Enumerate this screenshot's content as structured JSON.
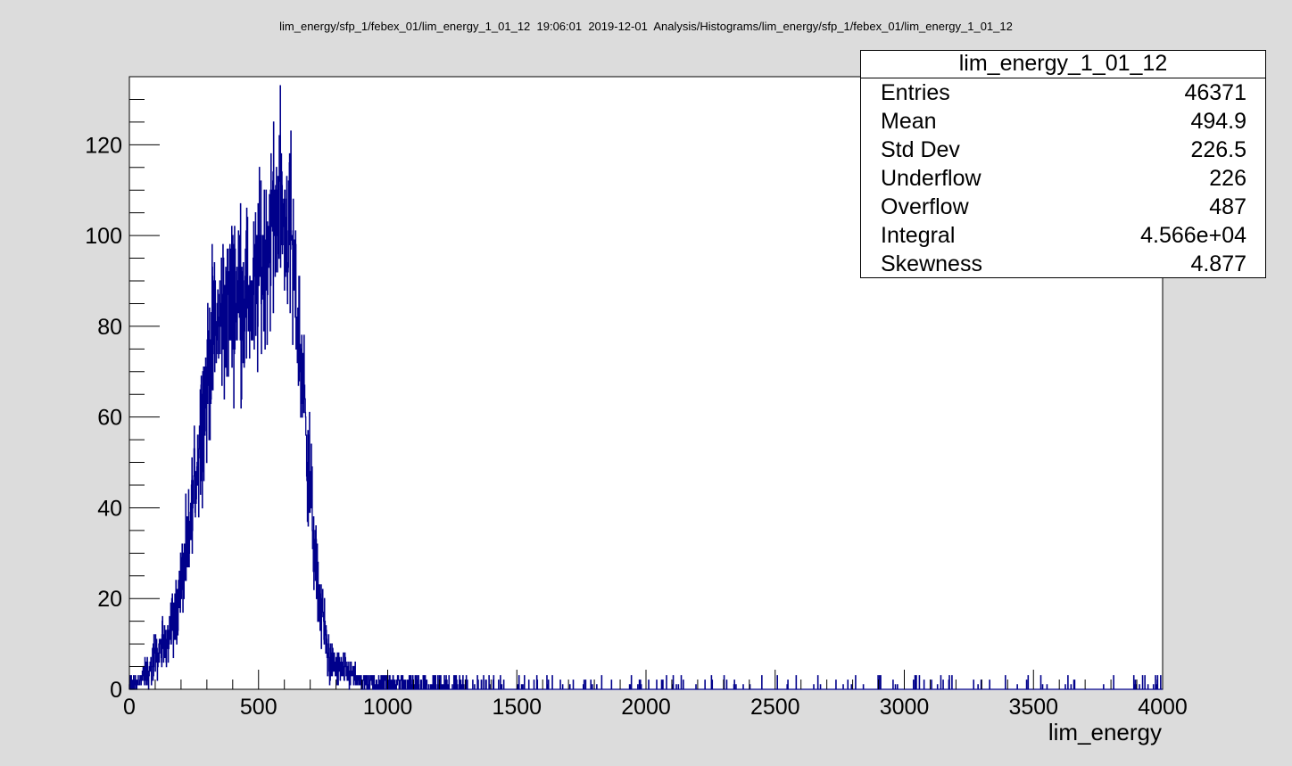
{
  "header": {
    "text": "lim_energy/sfp_1/febex_01/lim_energy_1_01_12  19:06:01  2019-12-01  Analysis/Histograms/lim_energy/sfp_1/febex_01/lim_energy_1_01_12"
  },
  "stats": {
    "title": "lim_energy_1_01_12",
    "rows": [
      {
        "label": "Entries",
        "value": "46371"
      },
      {
        "label": "Mean",
        "value": "494.9"
      },
      {
        "label": "Std Dev",
        "value": "226.5"
      },
      {
        "label": "Underflow",
        "value": "226"
      },
      {
        "label": "Overflow",
        "value": "487"
      },
      {
        "label": "Integral",
        "value": "4.566e+04"
      },
      {
        "label": "Skewness",
        "value": "4.877"
      }
    ]
  },
  "colors": {
    "line": "#00008b",
    "frame": "#000000",
    "pad": "#dcdcdc",
    "plot_bg": "#ffffff"
  },
  "chart_data": {
    "type": "histogram",
    "title": "",
    "xlabel": "lim_energy",
    "ylabel": "",
    "xlim": [
      0,
      4000
    ],
    "ylim": [
      0,
      135
    ],
    "x_ticks": [
      0,
      500,
      1000,
      1500,
      2000,
      2500,
      3000,
      3500,
      4000
    ],
    "y_ticks": [
      0,
      20,
      40,
      60,
      80,
      100,
      120
    ],
    "grid": false,
    "series": [
      {
        "bin_centers": [
          25,
          75,
          125,
          175,
          225,
          275,
          325,
          375,
          425,
          475,
          525,
          575,
          625,
          675,
          725,
          775,
          825,
          875,
          925,
          975,
          1050,
          1150,
          1250,
          1400,
          1600,
          2000,
          2500,
          3000,
          3500,
          3950
        ],
        "counts": [
          2,
          4,
          9,
          16,
          30,
          58,
          78,
          84,
          88,
          86,
          96,
          108,
          100,
          65,
          24,
          6,
          4,
          3,
          2,
          2,
          1.5,
          1,
          0.6,
          0.3,
          0.2,
          0.1,
          0.1,
          0.1,
          0.1,
          0.1
        ]
      }
    ]
  }
}
